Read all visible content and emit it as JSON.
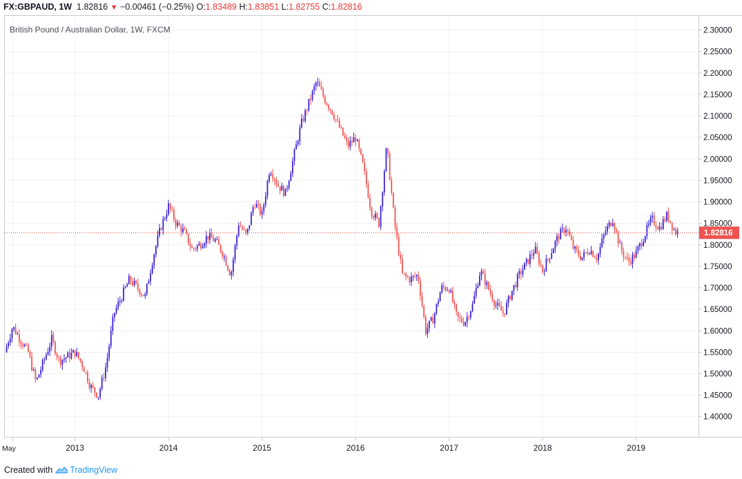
{
  "header": {
    "symbol": "FX:GBPAUD, 1W",
    "last": "1.82816",
    "change": "−0.00461 (−0.25%)",
    "o_label": "O:",
    "o_value": "1.83489",
    "h_label": "H:",
    "h_value": "1.83851",
    "l_label": "L:",
    "l_value": "1.82755",
    "c_label": "C:",
    "c_value": "1.82816"
  },
  "footer": {
    "created_with": "Created with",
    "brand": "TradingView"
  },
  "colors": {
    "up": "#3a1fd6",
    "down": "#ef5350",
    "grid": "#eef0f3",
    "price_line": "#e53935"
  },
  "chart_data": {
    "type": "candlestick",
    "title": "British Pound / Australian Dollar, 1W, FXCM",
    "interval": "1W",
    "y_ticks": [
      "1.40000",
      "1.45000",
      "1.50000",
      "1.55000",
      "1.60000",
      "1.65000",
      "1.70000",
      "1.75000",
      "1.80000",
      "1.85000",
      "1.90000",
      "1.95000",
      "2.00000",
      "2.05000",
      "2.10000",
      "2.15000",
      "2.20000",
      "2.25000",
      "2.30000"
    ],
    "ylim": [
      1.353,
      2.333
    ],
    "x_ticks": [
      {
        "label": "May",
        "date": "2012-05"
      },
      {
        "label": "2013",
        "date": "2013-01"
      },
      {
        "label": "2014",
        "date": "2014-01"
      },
      {
        "label": "2015",
        "date": "2015-01"
      },
      {
        "label": "2016",
        "date": "2016-01"
      },
      {
        "label": "2017",
        "date": "2017-01"
      },
      {
        "label": "2018",
        "date": "2018-01"
      },
      {
        "label": "2019",
        "date": "2019-01"
      }
    ],
    "xlim": [
      "2012-04",
      "2019-09"
    ],
    "last_price": 1.82816,
    "last_price_label": "1.82816",
    "grid": true,
    "close_path": [
      [
        "2012-04",
        1.55
      ],
      [
        "2012-05",
        1.61
      ],
      [
        "2012-07",
        1.55
      ],
      [
        "2012-08",
        1.48
      ],
      [
        "2012-09",
        1.53
      ],
      [
        "2012-10",
        1.58
      ],
      [
        "2012-11",
        1.53
      ],
      [
        "2013-01",
        1.55
      ],
      [
        "2013-02",
        1.52
      ],
      [
        "2013-03",
        1.47
      ],
      [
        "2013-04",
        1.45
      ],
      [
        "2013-05",
        1.52
      ],
      [
        "2013-06",
        1.64
      ],
      [
        "2013-07",
        1.68
      ],
      [
        "2013-08",
        1.72
      ],
      [
        "2013-09",
        1.7
      ],
      [
        "2013-10",
        1.68
      ],
      [
        "2013-11",
        1.77
      ],
      [
        "2013-12",
        1.84
      ],
      [
        "2014-01",
        1.89
      ],
      [
        "2014-02",
        1.85
      ],
      [
        "2014-03",
        1.83
      ],
      [
        "2014-04",
        1.79
      ],
      [
        "2014-05",
        1.8
      ],
      [
        "2014-06",
        1.82
      ],
      [
        "2014-07",
        1.81
      ],
      [
        "2014-08",
        1.78
      ],
      [
        "2014-09",
        1.73
      ],
      [
        "2014-10",
        1.85
      ],
      [
        "2014-11",
        1.82
      ],
      [
        "2014-12",
        1.9
      ],
      [
        "2015-01",
        1.87
      ],
      [
        "2015-02",
        1.98
      ],
      [
        "2015-03",
        1.94
      ],
      [
        "2015-04",
        1.92
      ],
      [
        "2015-05",
        2.0
      ],
      [
        "2015-06",
        2.08
      ],
      [
        "2015-07",
        2.13
      ],
      [
        "2015-08",
        2.18
      ],
      [
        "2015-09",
        2.14
      ],
      [
        "2015-10",
        2.11
      ],
      [
        "2015-11",
        2.07
      ],
      [
        "2015-12",
        2.03
      ],
      [
        "2016-01",
        2.05
      ],
      [
        "2016-02",
        1.98
      ],
      [
        "2016-03",
        1.88
      ],
      [
        "2016-04",
        1.85
      ],
      [
        "2016-05",
        2.03
      ],
      [
        "2016-06",
        1.85
      ],
      [
        "2016-07",
        1.73
      ],
      [
        "2016-08",
        1.72
      ],
      [
        "2016-09",
        1.73
      ],
      [
        "2016-10",
        1.6
      ],
      [
        "2016-11",
        1.63
      ],
      [
        "2016-12",
        1.7
      ],
      [
        "2017-01",
        1.7
      ],
      [
        "2017-02",
        1.63
      ],
      [
        "2017-03",
        1.62
      ],
      [
        "2017-04",
        1.66
      ],
      [
        "2017-05",
        1.74
      ],
      [
        "2017-06",
        1.7
      ],
      [
        "2017-07",
        1.66
      ],
      [
        "2017-08",
        1.64
      ],
      [
        "2017-09",
        1.69
      ],
      [
        "2017-10",
        1.73
      ],
      [
        "2017-11",
        1.76
      ],
      [
        "2017-12",
        1.79
      ],
      [
        "2018-01",
        1.74
      ],
      [
        "2018-02",
        1.78
      ],
      [
        "2018-03",
        1.82
      ],
      [
        "2018-04",
        1.84
      ],
      [
        "2018-05",
        1.79
      ],
      [
        "2018-06",
        1.77
      ],
      [
        "2018-07",
        1.79
      ],
      [
        "2018-08",
        1.77
      ],
      [
        "2018-09",
        1.83
      ],
      [
        "2018-10",
        1.86
      ],
      [
        "2018-11",
        1.79
      ],
      [
        "2018-12",
        1.76
      ],
      [
        "2019-01",
        1.78
      ],
      [
        "2019-02",
        1.82
      ],
      [
        "2019-03",
        1.86
      ],
      [
        "2019-04",
        1.84
      ],
      [
        "2019-05",
        1.87
      ],
      [
        "2019-06",
        1.83
      ]
    ]
  }
}
